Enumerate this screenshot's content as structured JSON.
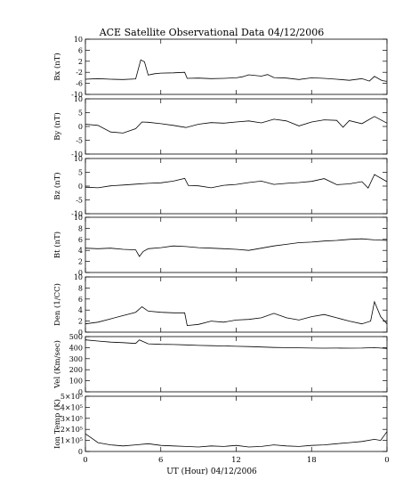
{
  "chart_data": {
    "type": "line",
    "title": "ACE Satellite Observational Data   04/12/2006",
    "xlabel": "UT (Hour)   04/12/2006",
    "x_ticks": [
      "0",
      "6",
      "12",
      "18",
      "0"
    ],
    "x_tick_values": [
      0,
      6,
      12,
      18,
      24
    ],
    "xlim": [
      0,
      24
    ],
    "panels": [
      {
        "name": "bx",
        "ylabel": "Bx (nT)",
        "ylim": [
          -10,
          10
        ],
        "y_ticks": [
          -10,
          -6,
          -2,
          2,
          6,
          10
        ],
        "y_tick_labels": [
          "-10",
          "-6",
          "-2",
          "2",
          "6",
          "10"
        ],
        "x": [
          0,
          1,
          2,
          3,
          4,
          4.4,
          4.7,
          5,
          5.5,
          6,
          7,
          7.9,
          8.1,
          9,
          10,
          11,
          12,
          12.5,
          13,
          14,
          14.5,
          15,
          16,
          17,
          18,
          19,
          20,
          21,
          22,
          22.6,
          23,
          23.6,
          24
        ],
        "values": [
          -4.5,
          -4.3,
          -4.5,
          -4.6,
          -4.4,
          2.5,
          1.8,
          -3,
          -2.5,
          -2.3,
          -2.2,
          -2,
          -4.2,
          -4.1,
          -4.3,
          -4.2,
          -4.0,
          -3.6,
          -2.9,
          -3.4,
          -2.8,
          -3.9,
          -4.1,
          -4.6,
          -4.0,
          -4.2,
          -4.5,
          -4.9,
          -4.3,
          -5.2,
          -3.5,
          -5.0,
          -5.3
        ]
      },
      {
        "name": "by",
        "ylabel": "By (nT)",
        "ylim": [
          -10,
          10
        ],
        "y_ticks": [
          -10,
          -5,
          0,
          5,
          10
        ],
        "y_tick_labels": [
          "-10",
          "-5",
          "0",
          "5",
          "10"
        ],
        "x": [
          0,
          1,
          2,
          3,
          4,
          4.5,
          5,
          6,
          7,
          8,
          9,
          10,
          11,
          12,
          13,
          14,
          15,
          16,
          17,
          18,
          19,
          20,
          20.5,
          21,
          22,
          23,
          24
        ],
        "values": [
          0.8,
          0.4,
          -2.0,
          -2.4,
          -0.8,
          1.6,
          1.5,
          1.0,
          0.4,
          -0.4,
          0.8,
          1.4,
          1.2,
          1.6,
          2.0,
          1.3,
          2.6,
          2.0,
          0.2,
          1.6,
          2.4,
          2.2,
          -0.3,
          2.1,
          1.0,
          3.6,
          1.2
        ]
      },
      {
        "name": "bz",
        "ylabel": "Bz (nT)",
        "ylim": [
          -10,
          10
        ],
        "y_ticks": [
          -10,
          -5,
          0,
          5,
          10
        ],
        "y_tick_labels": [
          "-10",
          "-5",
          "0",
          "5",
          "10"
        ],
        "x": [
          0,
          1,
          2,
          3,
          4,
          5,
          6,
          7,
          7.9,
          8.2,
          9,
          10,
          11,
          12,
          13,
          14,
          15,
          16,
          17,
          18,
          19,
          20,
          21,
          22,
          22.5,
          23,
          24
        ],
        "values": [
          -0.4,
          -0.6,
          0.1,
          0.4,
          0.7,
          1.0,
          1.2,
          1.8,
          2.8,
          0.2,
          0.1,
          -0.6,
          0.3,
          0.6,
          1.3,
          1.8,
          0.6,
          1.0,
          1.3,
          1.7,
          2.7,
          0.5,
          0.8,
          1.6,
          -0.7,
          4.2,
          1.6
        ]
      },
      {
        "name": "bt",
        "ylabel": "Bt (nT)",
        "ylim": [
          0,
          10
        ],
        "y_ticks": [
          0,
          2,
          4,
          6,
          8,
          10
        ],
        "y_tick_labels": [
          "0",
          "2",
          "4",
          "6",
          "8",
          "10"
        ],
        "x": [
          0,
          1,
          2,
          3,
          4,
          4.3,
          4.6,
          5,
          6,
          7,
          8,
          9,
          10,
          11,
          12,
          13,
          14,
          15,
          16,
          17,
          18,
          19,
          20,
          21,
          22,
          23,
          24
        ],
        "values": [
          4.4,
          4.3,
          4.4,
          4.2,
          4.1,
          2.9,
          3.8,
          4.3,
          4.5,
          4.8,
          4.7,
          4.5,
          4.4,
          4.3,
          4.2,
          4.0,
          4.4,
          4.8,
          5.1,
          5.4,
          5.5,
          5.7,
          5.8,
          6.0,
          6.1,
          5.9,
          5.8
        ]
      },
      {
        "name": "den",
        "ylabel": "Den (1/CC)",
        "ylim": [
          0,
          10
        ],
        "y_ticks": [
          0,
          2,
          4,
          6,
          8,
          10
        ],
        "y_tick_labels": [
          "0",
          "2",
          "4",
          "6",
          "8",
          "10"
        ],
        "x": [
          0,
          1,
          2,
          3,
          4,
          4.5,
          5,
          6,
          7,
          7.9,
          8.1,
          9,
          10,
          11,
          12,
          13,
          14,
          15,
          16,
          17,
          18,
          19,
          20,
          21,
          22,
          22.7,
          23,
          23.5,
          24
        ],
        "values": [
          1.5,
          1.8,
          2.4,
          3.0,
          3.6,
          4.6,
          3.8,
          3.6,
          3.5,
          3.5,
          1.2,
          1.4,
          2.0,
          1.8,
          2.2,
          2.3,
          2.6,
          3.4,
          2.6,
          2.2,
          2.8,
          3.2,
          2.6,
          2.0,
          1.5,
          2.0,
          5.5,
          2.8,
          1.5
        ]
      },
      {
        "name": "vel",
        "ylabel": "Vel (Km/sec)",
        "ylim": [
          0,
          500
        ],
        "y_ticks": [
          0,
          100,
          200,
          300,
          400,
          500
        ],
        "y_tick_labels": [
          "0",
          "100",
          "200",
          "300",
          "400",
          "500"
        ],
        "x": [
          0,
          1,
          2,
          3,
          4,
          4.3,
          5,
          6,
          7,
          8,
          9,
          10,
          11,
          12,
          13,
          14,
          15,
          16,
          17,
          18,
          19,
          20,
          21,
          22,
          23,
          24
        ],
        "values": [
          470,
          460,
          450,
          445,
          438,
          470,
          435,
          430,
          428,
          425,
          420,
          418,
          415,
          412,
          410,
          406,
          402,
          400,
          398,
          396,
          395,
          396,
          395,
          396,
          400,
          392
        ]
      },
      {
        "name": "temp",
        "ylabel": "Ion Temp (K)",
        "ylim": [
          0,
          500000
        ],
        "y_ticks": [
          0,
          100000,
          200000,
          300000,
          400000,
          500000
        ],
        "y_tick_labels": [
          "0",
          "1×10⁵",
          "2×10⁵",
          "3×10⁵",
          "4×10⁵",
          "5×10⁵"
        ],
        "x": [
          0,
          0.5,
          1,
          2,
          3,
          4,
          5,
          6,
          7,
          8,
          9,
          10,
          11,
          12,
          13,
          14,
          15,
          16,
          17,
          18,
          19,
          20,
          21,
          22,
          23,
          23.5,
          24
        ],
        "values": [
          160000,
          120000,
          80000,
          60000,
          50000,
          60000,
          70000,
          55000,
          50000,
          45000,
          40000,
          50000,
          45000,
          55000,
          40000,
          45000,
          60000,
          50000,
          45000,
          55000,
          60000,
          70000,
          80000,
          90000,
          110000,
          100000,
          180000
        ]
      }
    ]
  }
}
